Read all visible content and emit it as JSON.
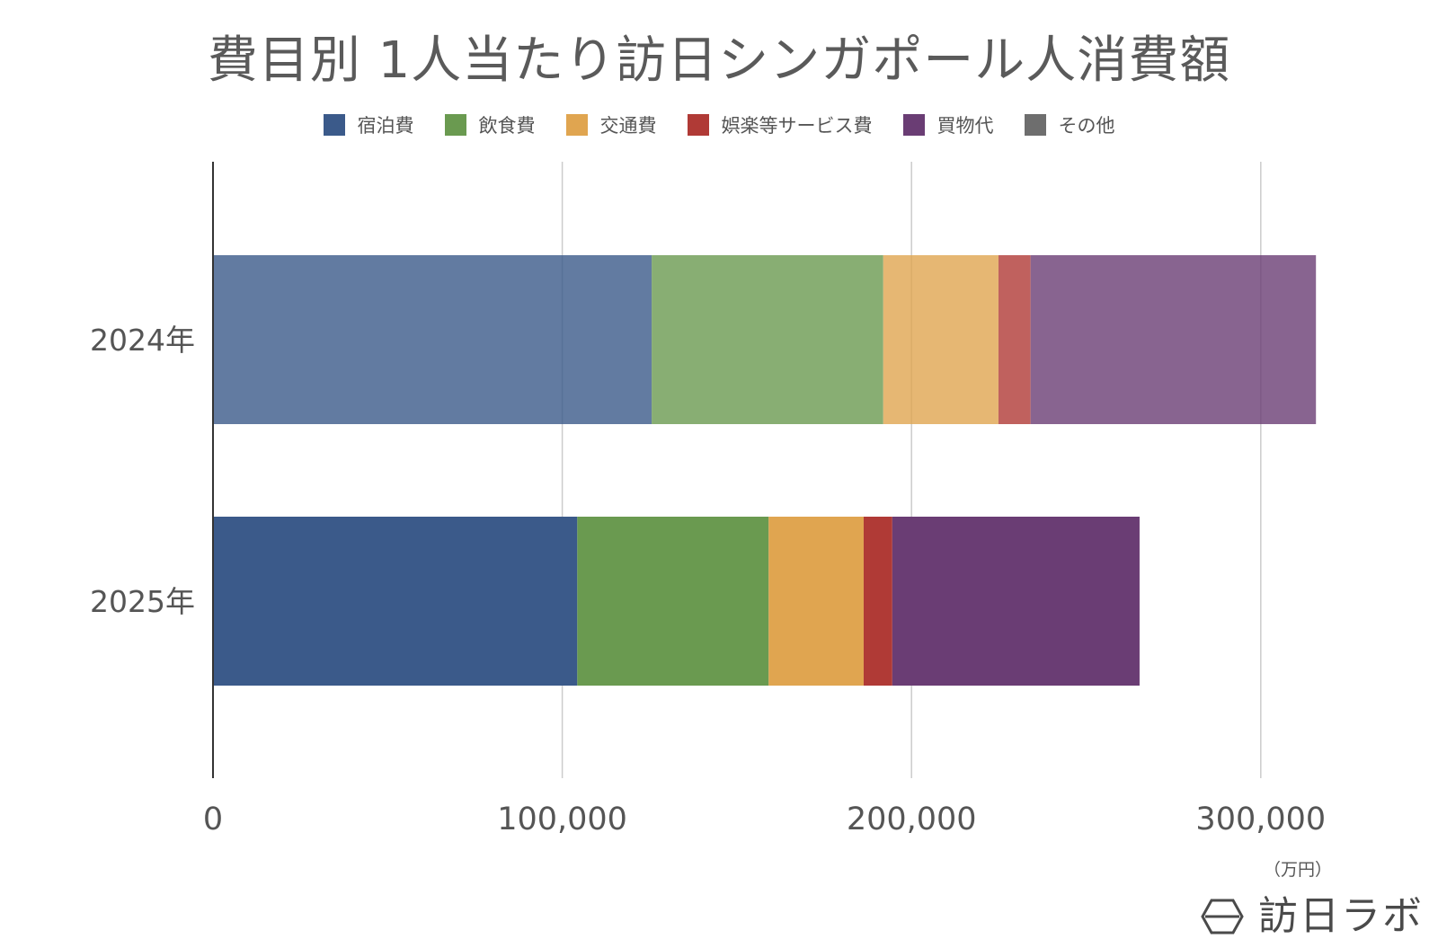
{
  "chart_data": {
    "type": "bar",
    "orientation": "horizontal",
    "stacked": true,
    "title": "費目別 1人当たり訪日シンガポール人消費額",
    "categories": [
      "2024年",
      "2025年"
    ],
    "series": [
      {
        "name": "宿泊費",
        "color": "#3b5a8a",
        "values": [
          125600,
          104300
        ]
      },
      {
        "name": "飲食費",
        "color": "#6a9a50",
        "values": [
          66300,
          54800
        ]
      },
      {
        "name": "交通費",
        "color": "#e0a550",
        "values": [
          33000,
          27200
        ]
      },
      {
        "name": "娯楽等サービス費",
        "color": "#b03a36",
        "values": [
          9200,
          8200
        ]
      },
      {
        "name": "買物代",
        "color": "#6a3d74",
        "values": [
          81700,
          70800
        ]
      },
      {
        "name": "その他",
        "color": "#6e6e6e",
        "values": [
          0,
          0
        ]
      }
    ],
    "series_opacity": [
      0.8,
      1.0
    ],
    "xlim": [
      0,
      320000
    ],
    "xticks": [
      0,
      100000,
      200000,
      300000
    ],
    "xtick_labels": [
      "0",
      "100,000",
      "200,000",
      "300,000"
    ],
    "unit_label": "（万円）",
    "grid": true,
    "legend_position": "top"
  },
  "brand": {
    "name": "訪日ラボ",
    "icon": "hexagon-logo-icon"
  }
}
